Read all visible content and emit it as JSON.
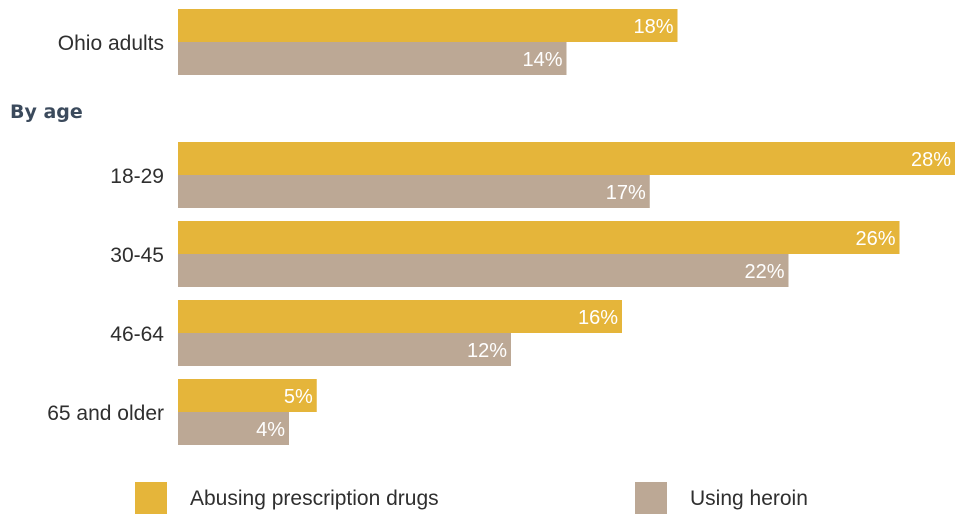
{
  "chart_data": {
    "type": "bar",
    "orientation": "horizontal",
    "title": "",
    "xlabel": "",
    "ylabel": "",
    "xlim": [
      0,
      28
    ],
    "grid": false,
    "legend_position": "bottom",
    "value_suffix": "%",
    "groups": [
      {
        "label": "",
        "categories": [
          "Ohio adults"
        ]
      },
      {
        "label": "By age",
        "categories": [
          "18-29",
          "30-45",
          "46-64",
          "65 and older"
        ]
      }
    ],
    "categories": [
      "Ohio adults",
      "18-29",
      "30-45",
      "46-64",
      "65 and older"
    ],
    "series": [
      {
        "name": "Abusing prescription drugs",
        "color": "#e5b53a",
        "values": [
          18,
          28,
          26,
          16,
          5
        ]
      },
      {
        "name": "Using heroin",
        "color": "#bca895",
        "values": [
          14,
          17,
          22,
          12,
          4
        ]
      }
    ]
  }
}
